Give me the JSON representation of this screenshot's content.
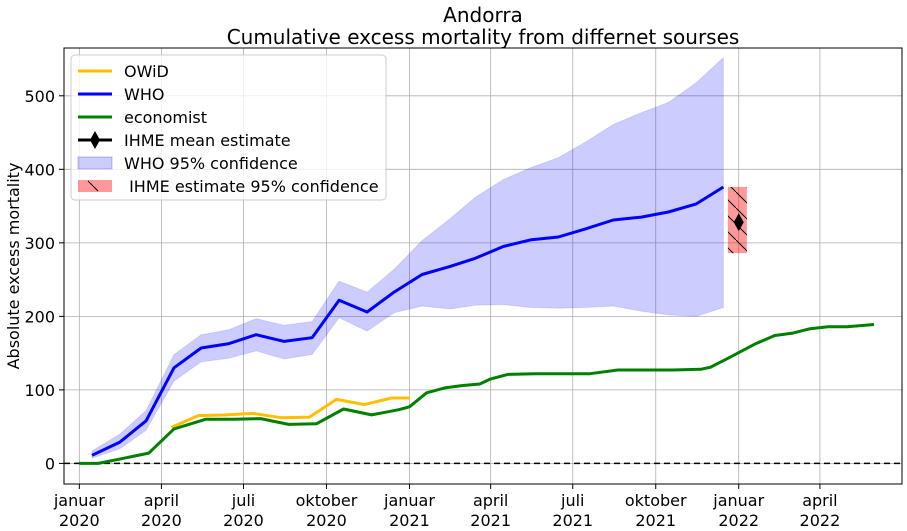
{
  "chart_data": {
    "type": "line",
    "title": "Andorra",
    "subtitle": "Cumulative excess mortality from differnet sourses",
    "ylabel": "Absolute excess mortality",
    "xlabel": "",
    "ylim": [
      -28,
      565
    ],
    "xlim": [
      "2019-12-15",
      "2022-07-01"
    ],
    "yticks": [
      0,
      100,
      200,
      300,
      400,
      500
    ],
    "xticks": [
      {
        "date": "2020-01-01",
        "line1": "januar",
        "line2": "2020"
      },
      {
        "date": "2020-04-01",
        "line1": "april",
        "line2": "2020"
      },
      {
        "date": "2020-07-01",
        "line1": "juli",
        "line2": "2020"
      },
      {
        "date": "2020-10-01",
        "line1": "oktober",
        "line2": "2020"
      },
      {
        "date": "2021-01-01",
        "line1": "januar",
        "line2": "2021"
      },
      {
        "date": "2021-04-01",
        "line1": "april",
        "line2": "2021"
      },
      {
        "date": "2021-07-01",
        "line1": "juli",
        "line2": "2021"
      },
      {
        "date": "2021-10-01",
        "line1": "oktober",
        "line2": "2021"
      },
      {
        "date": "2022-01-01",
        "line1": "januar",
        "line2": "2022"
      },
      {
        "date": "2022-04-01",
        "line1": "april",
        "line2": "2022"
      }
    ],
    "grid": true,
    "legend_position": "top-left",
    "zero_line": {
      "y": 0,
      "style": "dashed",
      "color": "#000000"
    },
    "series": [
      {
        "name": "OWiD",
        "color": "#ffbf00",
        "kind": "line",
        "x": [
          "2020-04-12",
          "2020-05-12",
          "2020-06-12",
          "2020-07-12",
          "2020-08-12",
          "2020-09-12",
          "2020-10-12",
          "2020-11-12",
          "2020-12-12",
          "2021-01-01"
        ],
        "y": [
          49,
          65,
          66,
          68,
          62,
          63,
          87,
          80,
          89,
          89
        ]
      },
      {
        "name": "WHO",
        "color": "#0000ff",
        "kind": "line",
        "x": [
          "2020-01-15",
          "2020-02-15",
          "2020-03-15",
          "2020-04-15",
          "2020-05-15",
          "2020-06-15",
          "2020-07-15",
          "2020-08-15",
          "2020-09-15",
          "2020-10-15",
          "2020-11-15",
          "2020-12-15",
          "2021-01-15",
          "2021-02-15",
          "2021-03-15",
          "2021-04-15",
          "2021-05-15",
          "2021-06-15",
          "2021-07-15",
          "2021-08-15",
          "2021-09-15",
          "2021-10-15",
          "2021-11-15",
          "2021-12-15"
        ],
        "y": [
          11,
          29,
          58,
          130,
          157,
          163,
          175,
          166,
          171,
          222,
          206,
          233,
          257,
          268,
          279,
          295,
          304,
          308,
          319,
          331,
          335,
          342,
          353,
          376
        ]
      },
      {
        "name": "economist",
        "color": "#008000",
        "kind": "line",
        "x": [
          "2020-01-01",
          "2020-01-22",
          "2020-02-19",
          "2020-03-18",
          "2020-04-15",
          "2020-05-20",
          "2020-06-20",
          "2020-07-20",
          "2020-08-20",
          "2020-09-20",
          "2020-10-20",
          "2020-11-20",
          "2020-12-20",
          "2021-01-01",
          "2021-01-20",
          "2021-02-10",
          "2021-03-01",
          "2021-03-20",
          "2021-04-01",
          "2021-04-20",
          "2021-05-20",
          "2021-06-20",
          "2021-07-20",
          "2021-08-20",
          "2021-09-20",
          "2021-10-20",
          "2021-11-20",
          "2021-12-01",
          "2021-12-20",
          "2022-01-20",
          "2022-02-10",
          "2022-03-01",
          "2022-03-20",
          "2022-04-10",
          "2022-05-01",
          "2022-05-31"
        ],
        "y": [
          0,
          0,
          7,
          14,
          47,
          60,
          60,
          61,
          53,
          54,
          74,
          66,
          73,
          77,
          96,
          103,
          106,
          108,
          115,
          121,
          122,
          122,
          122,
          127,
          127,
          127,
          128,
          131,
          143,
          163,
          174,
          177,
          183,
          186,
          186,
          189
        ]
      },
      {
        "name": "IHME mean estimate",
        "color": "#000000",
        "kind": "point",
        "x": [
          "2022-01-01"
        ],
        "y": [
          328
        ]
      }
    ],
    "bands": [
      {
        "name": "WHO 95% confidence",
        "color": "#0000ff",
        "opacity": 0.2,
        "x": [
          "2020-01-15",
          "2020-02-15",
          "2020-03-15",
          "2020-04-15",
          "2020-05-15",
          "2020-06-15",
          "2020-07-15",
          "2020-08-15",
          "2020-09-15",
          "2020-10-15",
          "2020-11-15",
          "2020-12-15",
          "2021-01-15",
          "2021-02-15",
          "2021-03-15",
          "2021-04-15",
          "2021-05-15",
          "2021-06-15",
          "2021-07-15",
          "2021-08-15",
          "2021-09-15",
          "2021-10-15",
          "2021-11-15",
          "2021-12-15"
        ],
        "lower": [
          7,
          20,
          45,
          112,
          138,
          143,
          153,
          142,
          148,
          198,
          180,
          205,
          214,
          210,
          215,
          216,
          212,
          211,
          212,
          214,
          207,
          202,
          200,
          212
        ],
        "upper": [
          17,
          40,
          72,
          148,
          175,
          182,
          197,
          188,
          193,
          248,
          233,
          264,
          303,
          333,
          362,
          386,
          402,
          416,
          437,
          461,
          477,
          491,
          518,
          552
        ]
      }
    ],
    "ihme_interval": {
      "name": " IHME estimate 95% confidence",
      "color": "#ff0000",
      "opacity": 0.4,
      "x0": "2021-12-20",
      "x1": "2022-01-10",
      "lower": 286,
      "upper": 376
    }
  }
}
